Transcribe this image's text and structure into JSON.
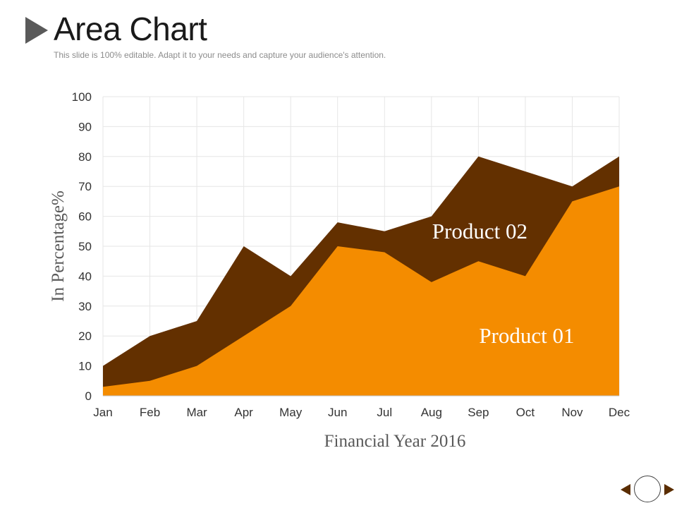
{
  "slide": {
    "title": "Area Chart",
    "subtitle": "This slide is 100% editable. Adapt it to your needs and capture your audience's attention."
  },
  "navigation": {
    "prev_icon": "triangle-left-icon",
    "home_icon": "circle-icon",
    "next_icon": "triangle-right-icon"
  },
  "chart_data": {
    "type": "area",
    "stacked": false,
    "categories": [
      "Jan",
      "Feb",
      "Mar",
      "Apr",
      "May",
      "Jun",
      "Jul",
      "Aug",
      "Sep",
      "Oct",
      "Nov",
      "Dec"
    ],
    "series": [
      {
        "name": "Product 02",
        "color": "#633000",
        "values": [
          10,
          20,
          25,
          50,
          40,
          58,
          55,
          60,
          80,
          75,
          70,
          80
        ],
        "label": "Product 02",
        "label_anchor": {
          "category": "Sep",
          "value": 55
        }
      },
      {
        "name": "Product 01",
        "color": "#f48c00",
        "values": [
          3,
          5,
          10,
          20,
          30,
          50,
          48,
          38,
          45,
          40,
          65,
          70
        ],
        "label": "Product 01",
        "label_anchor": {
          "category": "Oct",
          "value": 20
        }
      }
    ],
    "ylim": [
      0,
      100
    ],
    "yticks": [
      0,
      10,
      20,
      30,
      40,
      50,
      60,
      70,
      80,
      90,
      100
    ],
    "xlabel": "Financial Year 2016",
    "ylabel": "In Percentage%",
    "grid": true,
    "grid_color": "#e6e6e6",
    "text_color": "#595959",
    "label_color": "#ffffff"
  }
}
